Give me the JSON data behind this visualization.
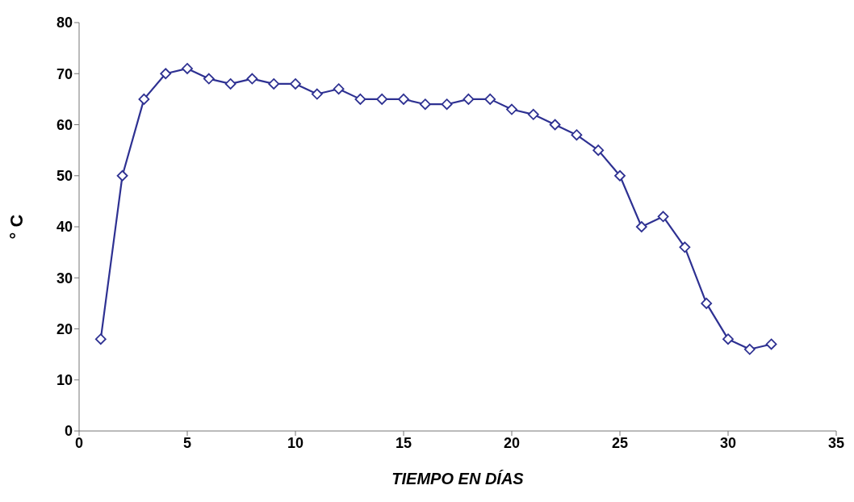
{
  "chart_data": {
    "type": "line",
    "xlabel": "TIEMPO EN DÍAS",
    "ylabel": "° C",
    "x": [
      1,
      2,
      3,
      4,
      5,
      6,
      7,
      8,
      9,
      10,
      11,
      12,
      13,
      14,
      15,
      16,
      17,
      18,
      19,
      20,
      21,
      22,
      23,
      24,
      25,
      26,
      27,
      28,
      29,
      30,
      31,
      32
    ],
    "series": [
      {
        "color": "#2e3192",
        "values": [
          18,
          50,
          65,
          70,
          71,
          69,
          68,
          69,
          68,
          68,
          66,
          67,
          65,
          65,
          65,
          64,
          64,
          65,
          65,
          63,
          62,
          60,
          58,
          55,
          50,
          40,
          42,
          36,
          25,
          18,
          16,
          17
        ]
      }
    ],
    "xlim": [
      0,
      35
    ],
    "xticks": [
      0,
      5,
      10,
      15,
      20,
      25,
      30,
      35
    ],
    "ylim": [
      0,
      80
    ],
    "yticks": [
      0,
      10,
      20,
      30,
      40,
      50,
      60,
      70,
      80
    ],
    "grid": false,
    "legend": false,
    "marker": "diamond",
    "line_style": "solid"
  }
}
